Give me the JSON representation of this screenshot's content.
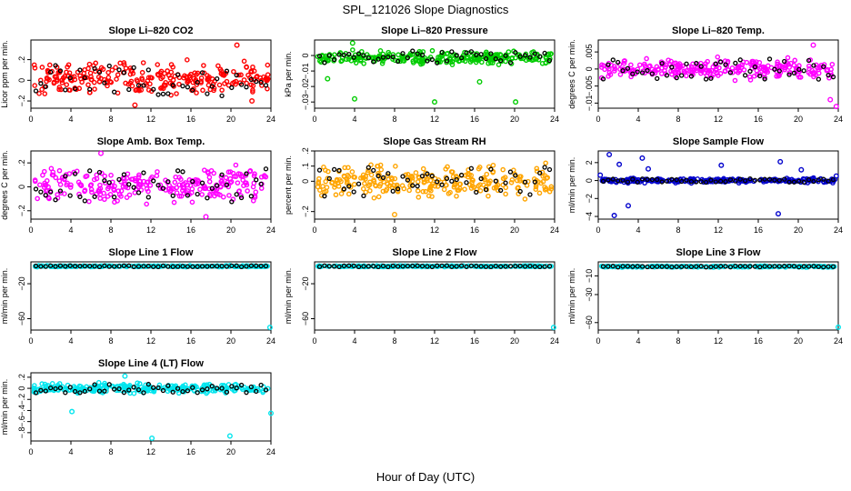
{
  "figure": {
    "title": "SPL_121026  Slope Diagnostics",
    "xlabel": "Hour of Day (UTC)"
  },
  "chart_data": [
    {
      "type": "scatter",
      "title": "Slope Li–820 CO2",
      "ylabel": "Licor ppm per min.",
      "xlim": [
        0,
        24
      ],
      "xticks": [
        "0",
        "4",
        "8",
        "12",
        "16",
        "20",
        "24"
      ],
      "yticks": [
        -0.2,
        0.0,
        0.2
      ],
      "ylim": [
        -0.27,
        0.39
      ],
      "color": "#ff0000",
      "bulk_range": [
        -0.2,
        0.24
      ],
      "outliers": [
        {
          "x": 20.6,
          "y": 0.34
        },
        {
          "x": 10.4,
          "y": -0.24
        },
        {
          "x": 22.1,
          "y": -0.2
        }
      ],
      "black_range": [
        -0.15,
        0.15
      ]
    },
    {
      "type": "scatter",
      "title": "Slope Li–820 Pressure",
      "ylabel": "kPa per min.",
      "xlim": [
        0,
        24
      ],
      "xticks": [
        "0",
        "4",
        "8",
        "12",
        "16",
        "20",
        "24"
      ],
      "yticks": [
        -0.03,
        -0.02,
        -0.01,
        0.0
      ],
      "ylim": [
        -0.034,
        0.01
      ],
      "color": "#00cc00",
      "bulk_range": [
        -0.007,
        0.004
      ],
      "outliers": [
        {
          "x": 1.3,
          "y": -0.015
        },
        {
          "x": 3.8,
          "y": 0.008
        },
        {
          "x": 4.0,
          "y": -0.028
        },
        {
          "x": 12.0,
          "y": -0.03
        },
        {
          "x": 16.5,
          "y": -0.017
        },
        {
          "x": 20.1,
          "y": -0.03
        }
      ],
      "black_range": [
        -0.005,
        0.003
      ]
    },
    {
      "type": "scatter",
      "title": "Slope Li–820 Temp.",
      "ylabel": "degrees C per min.",
      "xlim": [
        0,
        24
      ],
      "xticks": [
        "0",
        "4",
        "8",
        "12",
        "16",
        "20",
        "24"
      ],
      "yticks": [
        -0.01,
        -0.005,
        0.0,
        0.005
      ],
      "ylim": [
        -0.0115,
        0.0085
      ],
      "color": "#ff00ff",
      "bulk_range": [
        -0.004,
        0.004
      ],
      "outliers": [
        {
          "x": 21.5,
          "y": 0.007
        },
        {
          "x": 23.2,
          "y": -0.009
        },
        {
          "x": 23.8,
          "y": -0.011
        }
      ],
      "black_range": [
        -0.003,
        0.003
      ]
    },
    {
      "type": "scatter",
      "title": "Slope Amb. Box Temp.",
      "ylabel": "degrees C per min.",
      "xlim": [
        0,
        24
      ],
      "xticks": [
        "0",
        "4",
        "8",
        "12",
        "16",
        "20",
        "24"
      ],
      "yticks": [
        -0.2,
        0.0,
        0.2
      ],
      "ylim": [
        -0.27,
        0.3
      ],
      "color": "#ff00ff",
      "bulk_range": [
        -0.18,
        0.2
      ],
      "outliers": [
        {
          "x": 7.0,
          "y": 0.28
        },
        {
          "x": 17.5,
          "y": -0.25
        }
      ],
      "black_range": [
        -0.15,
        0.15
      ]
    },
    {
      "type": "scatter",
      "title": "Slope Gas Stream RH",
      "ylabel": "percent per min.",
      "xlim": [
        0,
        24
      ],
      "xticks": [
        "0",
        "4",
        "8",
        "12",
        "16",
        "20",
        "24"
      ],
      "yticks": [
        -0.2,
        0.0,
        0.1,
        0.2
      ],
      "ylim": [
        -0.25,
        0.2
      ],
      "color": "#ffa500",
      "bulk_range": [
        -0.15,
        0.15
      ],
      "outliers": [
        {
          "x": 8.0,
          "y": -0.22
        }
      ],
      "black_range": [
        -0.1,
        0.1
      ]
    },
    {
      "type": "scatter",
      "title": "Slope Sample Flow",
      "ylabel": "ml/min per min.",
      "xlim": [
        0,
        24
      ],
      "xticks": [
        "0",
        "4",
        "8",
        "12",
        "16",
        "20",
        "24"
      ],
      "yticks": [
        -4,
        -2,
        0,
        2
      ],
      "ylim": [
        -4.3,
        3.3
      ],
      "color": "#0000cc",
      "bulk_range": [
        -0.35,
        0.35
      ],
      "outliers": [
        {
          "x": 0.2,
          "y": 0.6
        },
        {
          "x": 1.1,
          "y": 2.9
        },
        {
          "x": 1.6,
          "y": -3.9
        },
        {
          "x": 2.1,
          "y": 1.8
        },
        {
          "x": 3.0,
          "y": -2.8
        },
        {
          "x": 4.4,
          "y": 2.5
        },
        {
          "x": 5.0,
          "y": 1.3
        },
        {
          "x": 12.3,
          "y": 1.7
        },
        {
          "x": 18.0,
          "y": -3.7
        },
        {
          "x": 18.2,
          "y": 2.1
        },
        {
          "x": 20.3,
          "y": 1.2
        },
        {
          "x": 23.8,
          "y": 0.5
        }
      ],
      "black_range": [
        -0.2,
        0.2
      ]
    },
    {
      "type": "scatter",
      "title": "Slope Line 1 Flow",
      "ylabel": "ml/min per min.",
      "xlim": [
        0,
        24
      ],
      "xticks": [
        "0",
        "4",
        "8",
        "12",
        "16",
        "20",
        "24"
      ],
      "yticks": [
        -60,
        -20
      ],
      "ylim": [
        -73,
        5
      ],
      "color": "#00e5ee",
      "bulk_range": [
        -1.0,
        1.0
      ],
      "outliers": [
        {
          "x": 23.9,
          "y": -70
        }
      ],
      "black_range": [
        -0.6,
        0.6
      ]
    },
    {
      "type": "scatter",
      "title": "Slope Line 2 Flow",
      "ylabel": "ml/min per min.",
      "xlim": [
        0,
        24
      ],
      "xticks": [
        "0",
        "4",
        "8",
        "12",
        "16",
        "20",
        "24"
      ],
      "yticks": [
        -60,
        -20
      ],
      "ylim": [
        -73,
        5
      ],
      "color": "#00e5ee",
      "bulk_range": [
        -1.0,
        1.0
      ],
      "outliers": [
        {
          "x": 23.9,
          "y": -70
        }
      ],
      "black_range": [
        -0.6,
        0.6
      ]
    },
    {
      "type": "scatter",
      "title": "Slope Line 3 Flow",
      "ylabel": "ml/min per min.",
      "xlim": [
        0,
        24
      ],
      "xticks": [
        "0",
        "4",
        "8",
        "12",
        "16",
        "20",
        "24"
      ],
      "yticks": [
        -60,
        -30,
        -10
      ],
      "ylim": [
        -68,
        5
      ],
      "color": "#00e5ee",
      "bulk_range": [
        -1.0,
        1.0
      ],
      "outliers": [
        {
          "x": 24.0,
          "y": -65
        }
      ],
      "black_range": [
        -0.6,
        0.6
      ]
    },
    {
      "type": "scatter",
      "title": "Slope Line 4 (LT) Flow",
      "ylabel": "ml/min per min.",
      "xlim": [
        0,
        24
      ],
      "xticks": [
        "0",
        "4",
        "8",
        "12",
        "16",
        "20",
        "24"
      ],
      "yticks": [
        -0.8,
        -0.6,
        -0.4,
        -0.2,
        0.0,
        0.2
      ],
      "ylim": [
        -0.95,
        0.28
      ],
      "color": "#00e5ee",
      "bulk_range": [
        -0.12,
        0.12
      ],
      "outliers": [
        {
          "x": 4.1,
          "y": -0.42
        },
        {
          "x": 9.4,
          "y": 0.22
        },
        {
          "x": 12.1,
          "y": -0.9
        },
        {
          "x": 19.9,
          "y": -0.86
        },
        {
          "x": 24.0,
          "y": -0.45
        }
      ],
      "black_range": [
        -0.08,
        0.08
      ]
    }
  ]
}
